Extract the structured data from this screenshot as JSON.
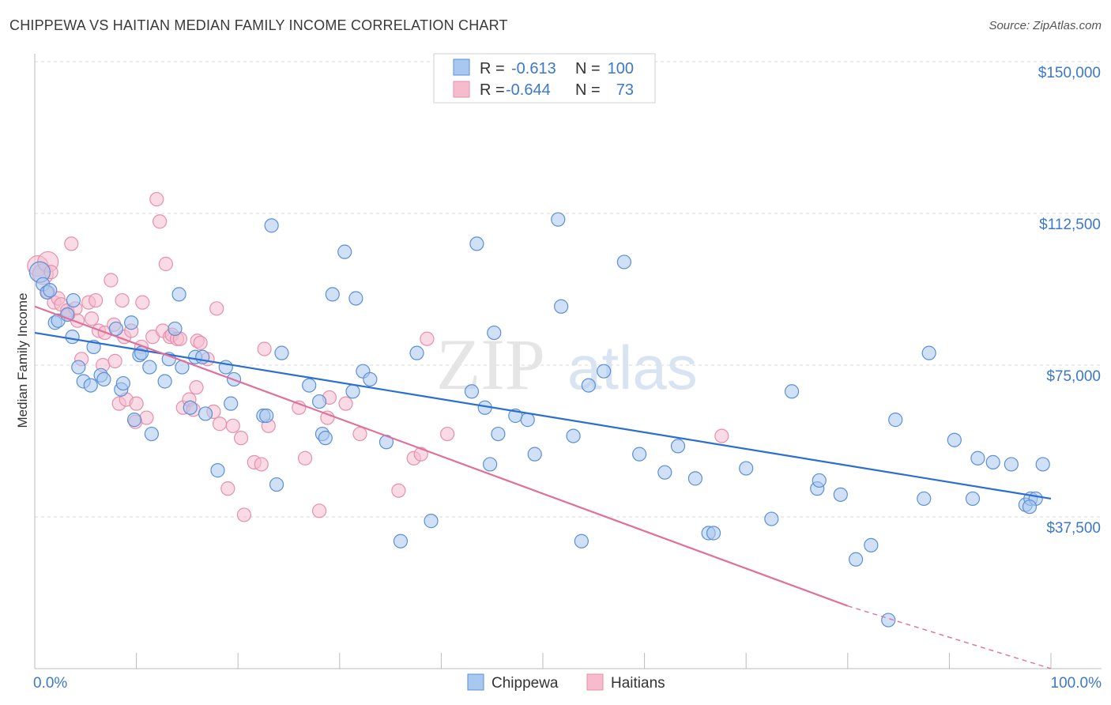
{
  "title": "CHIPPEWA VS HAITIAN MEDIAN FAMILY INCOME CORRELATION CHART",
  "source": "Source: ZipAtlas.com",
  "watermark": {
    "zip": "ZIP",
    "atlas": "atlas"
  },
  "colors": {
    "chippewa_fill": "#a9c8f0",
    "chippewa_stroke": "#5b8fd6",
    "chippewa_line": "#2a6fd0",
    "haitians_fill": "#f6bccd",
    "haitians_stroke": "#e690ab",
    "haitians_line": "#e0709a",
    "axis_text": "#3d78c8",
    "grid": "#d8d8d8"
  },
  "legend": {
    "rows": [
      {
        "series": "chippewa",
        "r_label": "R =",
        "r_value": "-0.613",
        "n_label": "N =",
        "n_value": "100"
      },
      {
        "series": "haitians",
        "r_label": "R =",
        "r_value": "-0.644",
        "n_label": "N =",
        "n_value": "73"
      }
    ]
  },
  "chart_data": {
    "type": "scatter",
    "xlabel": "",
    "ylabel": "Median Family Income",
    "xlim": [
      0,
      100
    ],
    "ylim": [
      0,
      155000
    ],
    "x_tick_labels": [
      {
        "value": 0,
        "label": "0.0%"
      },
      {
        "value": 100,
        "label": "100.0%"
      }
    ],
    "y_ticks": [
      {
        "value": 37500,
        "label": "$37,500"
      },
      {
        "value": 75000,
        "label": "$75,000"
      },
      {
        "value": 112500,
        "label": "$112,500"
      },
      {
        "value": 150000,
        "label": "$150,000"
      }
    ],
    "grid": true,
    "legend_position": "top-center",
    "series": [
      {
        "name": "Chippewa",
        "key": "chippewa",
        "trend": {
          "x": [
            0,
            100
          ],
          "y": [
            83000,
            42000
          ],
          "dashed_extension": false
        },
        "points": [
          [
            0.5,
            98000
          ],
          [
            0.8,
            95000
          ],
          [
            1.2,
            93000
          ],
          [
            2,
            85500
          ],
          [
            2.3,
            86000
          ],
          [
            1.5,
            93500
          ],
          [
            3.8,
            91000
          ],
          [
            3.2,
            87500
          ],
          [
            3.7,
            82000
          ],
          [
            4.3,
            74500
          ],
          [
            4.8,
            71000
          ],
          [
            5.5,
            70000
          ],
          [
            5.8,
            79500
          ],
          [
            6.5,
            72500
          ],
          [
            6.8,
            71500
          ],
          [
            8,
            84000
          ],
          [
            8.5,
            69000
          ],
          [
            8.7,
            70500
          ],
          [
            9.5,
            85500
          ],
          [
            9.8,
            61500
          ],
          [
            10.3,
            77500
          ],
          [
            10.5,
            78000
          ],
          [
            11.3,
            74500
          ],
          [
            11.5,
            58000
          ],
          [
            12.8,
            71000
          ],
          [
            13.2,
            76500
          ],
          [
            13.8,
            84000
          ],
          [
            14.2,
            92500
          ],
          [
            14.5,
            74500
          ],
          [
            15.3,
            64500
          ],
          [
            15.8,
            77000
          ],
          [
            16.5,
            77000
          ],
          [
            16.8,
            63000
          ],
          [
            18,
            49000
          ],
          [
            18.8,
            74500
          ],
          [
            19.3,
            65500
          ],
          [
            19.6,
            71500
          ],
          [
            22.5,
            62500
          ],
          [
            22.8,
            62500
          ],
          [
            23.3,
            109500
          ],
          [
            24.3,
            78000
          ],
          [
            23.8,
            45500
          ],
          [
            27,
            70000
          ],
          [
            28,
            66000
          ],
          [
            28.3,
            58000
          ],
          [
            28.6,
            57000
          ],
          [
            29.3,
            92500
          ],
          [
            30.5,
            103000
          ],
          [
            31.3,
            68500
          ],
          [
            31.6,
            91500
          ],
          [
            32.3,
            73500
          ],
          [
            33,
            71500
          ],
          [
            34.6,
            56000
          ],
          [
            36,
            31500
          ],
          [
            37.6,
            78000
          ],
          [
            39,
            36500
          ],
          [
            43.5,
            105000
          ],
          [
            43,
            68500
          ],
          [
            44.3,
            64500
          ],
          [
            45.2,
            83000
          ],
          [
            45.6,
            58000
          ],
          [
            44.8,
            50500
          ],
          [
            47.3,
            62500
          ],
          [
            48.5,
            61500
          ],
          [
            49.2,
            53000
          ],
          [
            51.5,
            111000
          ],
          [
            51.8,
            89500
          ],
          [
            53,
            57500
          ],
          [
            53.8,
            31500
          ],
          [
            54.5,
            70000
          ],
          [
            56,
            73500
          ],
          [
            58,
            100500
          ],
          [
            59.5,
            53000
          ],
          [
            62,
            48500
          ],
          [
            63.3,
            55000
          ],
          [
            65,
            47000
          ],
          [
            66.3,
            33500
          ],
          [
            66.8,
            33500
          ],
          [
            70,
            49500
          ],
          [
            72.5,
            37000
          ],
          [
            74.5,
            68500
          ],
          [
            77,
            44500
          ],
          [
            77.2,
            46500
          ],
          [
            79.3,
            43000
          ],
          [
            80.8,
            27000
          ],
          [
            82.3,
            30500
          ],
          [
            84,
            12000
          ],
          [
            84.7,
            61500
          ],
          [
            87.5,
            42000
          ],
          [
            88,
            78000
          ],
          [
            90.5,
            56500
          ],
          [
            92.3,
            42000
          ],
          [
            92.8,
            52000
          ],
          [
            94.3,
            51000
          ],
          [
            96.1,
            50500
          ],
          [
            97.5,
            40500
          ],
          [
            98,
            42000
          ],
          [
            98.5,
            42000
          ],
          [
            99.2,
            50500
          ],
          [
            97.9,
            40000
          ]
        ]
      },
      {
        "name": "Haitians",
        "key": "haitians",
        "trend": {
          "x": [
            0,
            80
          ],
          "y": [
            89500,
            15500
          ],
          "dashed_extension": true,
          "dashed_to": [
            100,
            0
          ]
        },
        "points": [
          [
            0.3,
            99500
          ],
          [
            0.8,
            97500
          ],
          [
            1.3,
            100500
          ],
          [
            1.6,
            98000
          ],
          [
            1.9,
            90500
          ],
          [
            1.3,
            93000
          ],
          [
            2.3,
            91500
          ],
          [
            2.6,
            90000
          ],
          [
            3.2,
            88500
          ],
          [
            3.3,
            87500
          ],
          [
            3.6,
            105000
          ],
          [
            4,
            89000
          ],
          [
            4.2,
            86000
          ],
          [
            4.6,
            76500
          ],
          [
            5.3,
            90500
          ],
          [
            5.6,
            86500
          ],
          [
            6,
            91000
          ],
          [
            6.3,
            83500
          ],
          [
            6.7,
            75000
          ],
          [
            6.9,
            83000
          ],
          [
            7.5,
            96000
          ],
          [
            7.8,
            85000
          ],
          [
            7.9,
            76000
          ],
          [
            8.3,
            65500
          ],
          [
            8.6,
            91000
          ],
          [
            8.8,
            82000
          ],
          [
            9,
            66500
          ],
          [
            9.5,
            83500
          ],
          [
            9.9,
            61000
          ],
          [
            10,
            65500
          ],
          [
            10.5,
            79500
          ],
          [
            10.6,
            90500
          ],
          [
            11,
            62000
          ],
          [
            11.6,
            82000
          ],
          [
            12,
            116000
          ],
          [
            12.3,
            110500
          ],
          [
            12.6,
            83500
          ],
          [
            12.9,
            100000
          ],
          [
            13.3,
            82000
          ],
          [
            13.5,
            82500
          ],
          [
            14,
            81500
          ],
          [
            14.3,
            81500
          ],
          [
            14.6,
            64500
          ],
          [
            15.2,
            66500
          ],
          [
            15.6,
            64000
          ],
          [
            15.9,
            69500
          ],
          [
            16,
            81000
          ],
          [
            16.3,
            80500
          ],
          [
            17,
            76500
          ],
          [
            17.6,
            63500
          ],
          [
            17.9,
            89000
          ],
          [
            18.2,
            60500
          ],
          [
            19,
            44500
          ],
          [
            19.5,
            60000
          ],
          [
            20.3,
            57000
          ],
          [
            20.6,
            38000
          ],
          [
            21.6,
            51000
          ],
          [
            22.3,
            50500
          ],
          [
            22.6,
            79000
          ],
          [
            23,
            60000
          ],
          [
            26,
            64500
          ],
          [
            26.6,
            52000
          ],
          [
            28,
            39000
          ],
          [
            28.8,
            62000
          ],
          [
            29,
            67000
          ],
          [
            30.6,
            65500
          ],
          [
            32,
            58000
          ],
          [
            35.8,
            44000
          ],
          [
            37.3,
            52000
          ],
          [
            38,
            53000
          ],
          [
            38.6,
            81500
          ],
          [
            40.6,
            58000
          ],
          [
            67.6,
            57500
          ]
        ]
      }
    ]
  },
  "bottom_legend": [
    {
      "series": "chippewa",
      "label": "Chippewa"
    },
    {
      "series": "haitians",
      "label": "Haitians"
    }
  ]
}
